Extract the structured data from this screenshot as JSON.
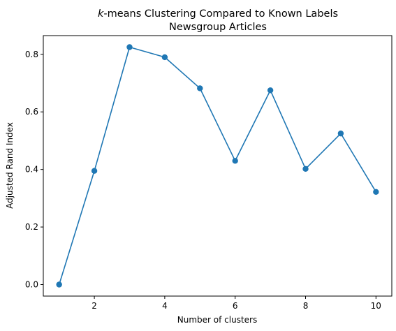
{
  "chart_data": {
    "type": "line",
    "title_italic": "k",
    "title_rest": "-means Clustering Compared to Known Labels",
    "subtitle": "Newsgroup Articles",
    "xlabel": "Number of clusters",
    "ylabel": "Adjusted Rand Index",
    "x": [
      1,
      2,
      3,
      4,
      5,
      6,
      7,
      8,
      9,
      10
    ],
    "series": [
      {
        "values": [
          0.0,
          0.395,
          0.825,
          0.79,
          0.682,
          0.43,
          0.675,
          0.402,
          0.525,
          0.322
        ]
      }
    ],
    "xlim": [
      0.55,
      10.45
    ],
    "ylim": [
      -0.04,
      0.865
    ],
    "xticks": [
      2,
      4,
      6,
      8,
      10
    ],
    "yticks": [
      0.0,
      0.2,
      0.4,
      0.6,
      0.8
    ],
    "xtick_labels": [
      "2",
      "4",
      "6",
      "8",
      "10"
    ],
    "ytick_labels": [
      "0.0",
      "0.2",
      "0.4",
      "0.6",
      "0.8"
    ],
    "grid": false,
    "colors": {
      "line": "#1f77b4",
      "marker": "#1f77b4"
    }
  }
}
